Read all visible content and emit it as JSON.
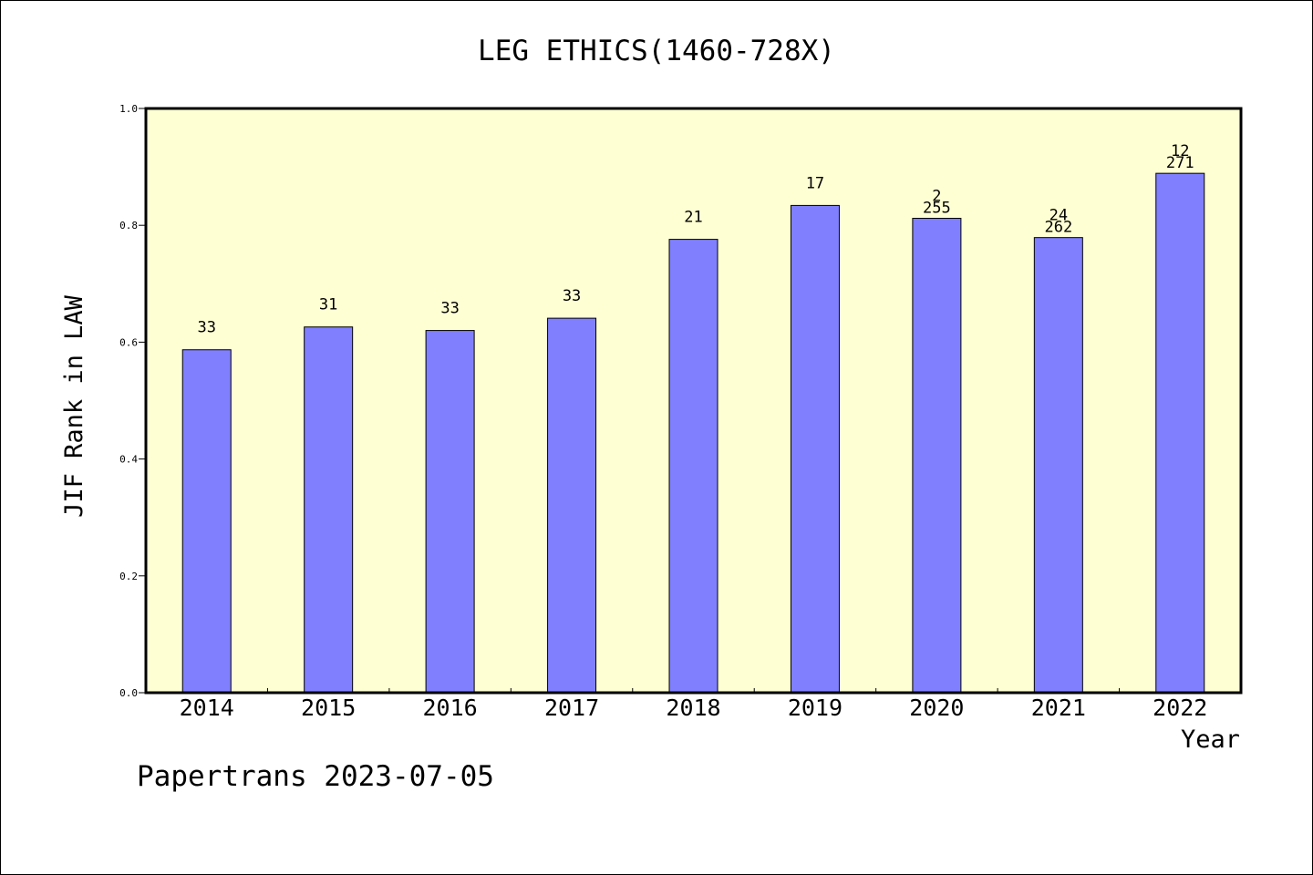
{
  "footer": {
    "text": "Papertrans 2023-07-05"
  },
  "colors": {
    "plot_background": "#FFFFD4",
    "bar_fill": "#8080FF",
    "bar_stroke": "#000000",
    "axis": "#000000",
    "text": "#000000"
  },
  "chart_data": {
    "type": "bar",
    "title": "LEG ETHICS(1460-728X)",
    "xlabel": "Year",
    "ylabel": "JIF Rank in LAW",
    "ylim": [
      0,
      1.0
    ],
    "yticks": [
      "0.0",
      "0.2",
      "0.4",
      "0.6",
      "0.8",
      "1.0"
    ],
    "grid": false,
    "categories": [
      "2014",
      "2015",
      "2016",
      "2017",
      "2018",
      "2019",
      "2020",
      "2021",
      "2022"
    ],
    "values": [
      0.587,
      0.626,
      0.62,
      0.641,
      0.776,
      0.834,
      0.812,
      0.779,
      0.889
    ],
    "data_labels": [
      [
        "33"
      ],
      [
        "31"
      ],
      [
        "33"
      ],
      [
        "33"
      ],
      [
        "21"
      ],
      [
        "17"
      ],
      [
        "2",
        "255"
      ],
      [
        "24",
        "262"
      ],
      [
        "12",
        "271"
      ]
    ]
  }
}
